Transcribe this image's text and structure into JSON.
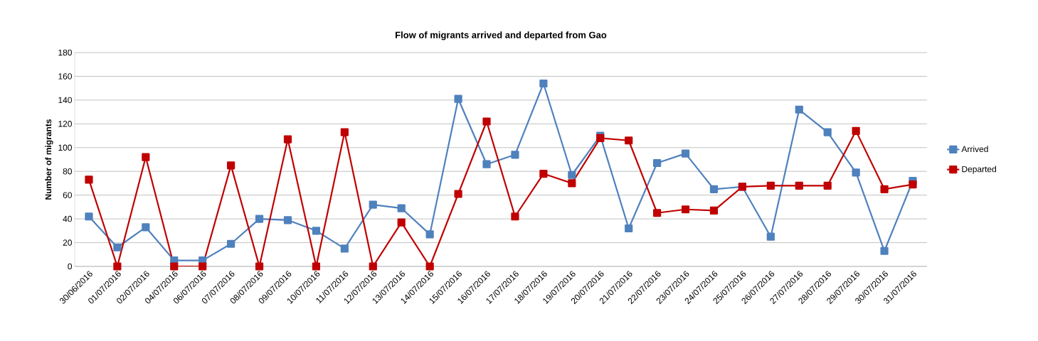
{
  "chart_data": {
    "type": "line",
    "title": "Flow of migrants arrived and departed from Gao",
    "ylabel": "Number of migrants",
    "categories": [
      "30/06/2016",
      "01/07/2016",
      "02/07/2016",
      "04/07/2016",
      "06/07/2016",
      "07/07/2016",
      "08/07/2016",
      "09/07/2016",
      "10/07/2016",
      "11/07/2016",
      "12/07/2016",
      "13/07/2016",
      "14/07/2016",
      "15/07/2016",
      "16/07/2016",
      "17/07/2016",
      "18/07/2016",
      "19/07/2016",
      "20/07/2016",
      "21/07/2016",
      "22/07/2016",
      "23/07/2016",
      "24/07/2016",
      "25/07/2016",
      "26/07/2016",
      "27/07/2016",
      "28/07/2016",
      "29/07/2016",
      "30/07/2016",
      "31/07/2016"
    ],
    "series": [
      {
        "name": "Arrived",
        "color": "#4f81bd",
        "values": [
          42,
          16,
          33,
          5,
          5,
          19,
          40,
          39,
          30,
          15,
          52,
          49,
          27,
          141,
          86,
          94,
          154,
          77,
          110,
          32,
          87,
          95,
          65,
          67,
          25,
          132,
          113,
          79,
          13,
          72
        ]
      },
      {
        "name": "Departed",
        "color": "#c00000",
        "values": [
          73,
          0,
          92,
          0,
          0,
          85,
          0,
          107,
          0,
          113,
          0,
          37,
          0,
          61,
          122,
          42,
          78,
          70,
          108,
          106,
          45,
          48,
          47,
          67,
          68,
          68,
          68,
          114,
          65,
          69
        ]
      }
    ],
    "ylim": [
      0,
      180
    ],
    "yticks": [
      0,
      20,
      40,
      60,
      80,
      100,
      120,
      140,
      160,
      180
    ],
    "grid": "y",
    "legend": "right",
    "marker": "square",
    "line_style": "solid"
  }
}
